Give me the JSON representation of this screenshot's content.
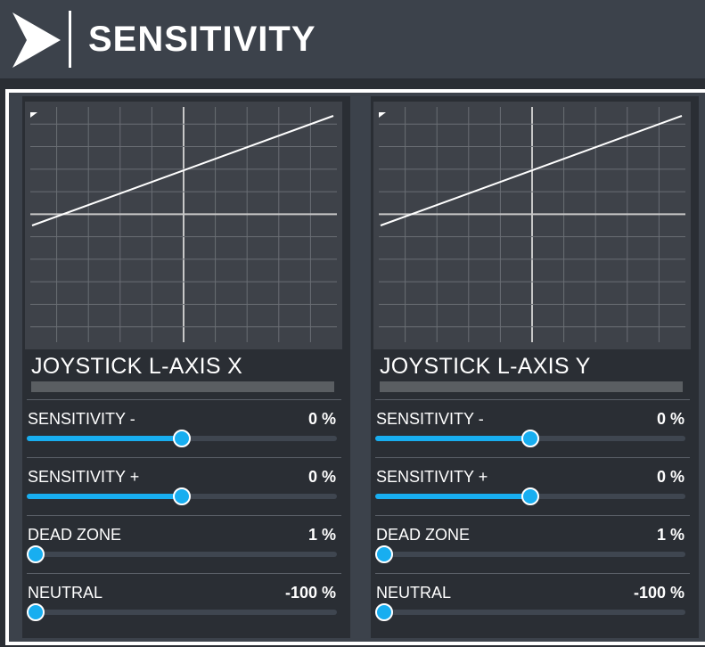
{
  "header": {
    "title": "SENSITIVITY",
    "back_icon": "chevron-right-icon"
  },
  "colors": {
    "accent": "#18aef0",
    "header_bg": "#3c424b",
    "panel_bg": "#2a2e34",
    "graph_bg": "#3e4249"
  },
  "panels": [
    {
      "axis_name": "JOYSTICK L-AXIS X",
      "controls": [
        {
          "label": "SENSITIVITY -",
          "value": "0 %",
          "level": 0.5
        },
        {
          "label": "SENSITIVITY +",
          "value": "0 %",
          "level": 0.5
        },
        {
          "label": "DEAD ZONE",
          "value": "1 %",
          "level": 0.01
        },
        {
          "label": "NEUTRAL",
          "value": "-100 %",
          "level": 0.0
        }
      ]
    },
    {
      "axis_name": "JOYSTICK L-AXIS Y",
      "controls": [
        {
          "label": "SENSITIVITY -",
          "value": "0 %",
          "level": 0.5
        },
        {
          "label": "SENSITIVITY +",
          "value": "0 %",
          "level": 0.5
        },
        {
          "label": "DEAD ZONE",
          "value": "1 %",
          "level": 0.01
        },
        {
          "label": "NEUTRAL",
          "value": "-100 %",
          "level": 0.0
        }
      ]
    }
  ]
}
